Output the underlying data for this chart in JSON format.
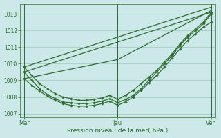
{
  "bg_color": "#cce8e8",
  "grid_color": "#99ccbb",
  "line_color": "#2d6e2d",
  "xlabel": "Pression niveau de la mer( hPa )",
  "ylim": [
    1006.8,
    1013.6
  ],
  "yticks": [
    1007,
    1008,
    1009,
    1010,
    1011,
    1012,
    1013
  ],
  "xlim": [
    0,
    50
  ],
  "xtick_labels": [
    "Mar",
    "Jeu",
    "Ven"
  ],
  "xtick_positions": [
    1,
    25,
    49
  ],
  "vlines": [
    1,
    25,
    49
  ],
  "n_points": 49,
  "curved_series": [
    {
      "x": [
        1,
        3,
        5,
        7,
        9,
        11,
        13,
        15,
        17,
        19,
        21,
        23,
        25,
        27,
        29,
        31,
        33,
        35,
        37,
        39,
        41,
        43,
        45,
        47,
        49
      ],
      "y": [
        1009.8,
        1009.3,
        1008.8,
        1008.5,
        1008.2,
        1008.0,
        1007.9,
        1007.8,
        1007.8,
        1007.85,
        1007.95,
        1008.1,
        1007.85,
        1008.1,
        1008.4,
        1008.8,
        1009.2,
        1009.6,
        1010.1,
        1010.6,
        1011.2,
        1011.7,
        1012.1,
        1012.5,
        1013.1
      ]
    },
    {
      "x": [
        1,
        3,
        5,
        7,
        9,
        11,
        13,
        15,
        17,
        19,
        21,
        23,
        25,
        27,
        29,
        31,
        33,
        35,
        37,
        39,
        41,
        43,
        45,
        47,
        49
      ],
      "y": [
        1009.5,
        1009.0,
        1008.5,
        1008.15,
        1007.9,
        1007.7,
        1007.65,
        1007.6,
        1007.6,
        1007.65,
        1007.75,
        1007.9,
        1007.65,
        1007.85,
        1008.1,
        1008.5,
        1009.0,
        1009.5,
        1010.0,
        1010.5,
        1011.1,
        1011.6,
        1012.0,
        1012.4,
        1013.0
      ]
    },
    {
      "x": [
        1,
        3,
        5,
        7,
        9,
        11,
        13,
        15,
        17,
        19,
        21,
        23,
        25,
        27,
        29,
        31,
        33,
        35,
        37,
        39,
        41,
        43,
        45,
        47,
        49
      ],
      "y": [
        1009.1,
        1008.7,
        1008.35,
        1008.05,
        1007.8,
        1007.6,
        1007.5,
        1007.45,
        1007.45,
        1007.5,
        1007.6,
        1007.75,
        1007.5,
        1007.7,
        1008.0,
        1008.4,
        1008.85,
        1009.3,
        1009.8,
        1010.35,
        1010.9,
        1011.4,
        1011.8,
        1012.2,
        1012.5
      ]
    }
  ],
  "straight_series": [
    {
      "x": [
        1,
        49
      ],
      "y": [
        1009.8,
        1013.4
      ]
    },
    {
      "x": [
        1,
        49
      ],
      "y": [
        1009.5,
        1013.1
      ]
    },
    {
      "x": [
        1,
        25,
        49
      ],
      "y": [
        1009.1,
        1010.25,
        1013.2
      ]
    }
  ]
}
